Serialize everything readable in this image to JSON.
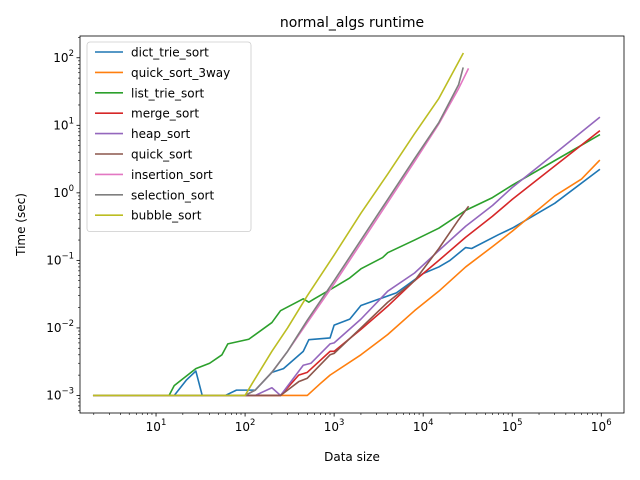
{
  "chart_data": {
    "type": "line",
    "title": "normal_algs runtime",
    "xlabel": "Data size",
    "ylabel": "Time (sec)",
    "xscale": "log",
    "yscale": "log",
    "xlim": [
      1.4,
      1800000
    ],
    "ylim": [
      0.00055,
      210
    ],
    "x_ticks": [
      {
        "value": 10,
        "base": "10",
        "exp": "1"
      },
      {
        "value": 100,
        "base": "10",
        "exp": "2"
      },
      {
        "value": 1000,
        "base": "10",
        "exp": "3"
      },
      {
        "value": 10000,
        "base": "10",
        "exp": "4"
      },
      {
        "value": 100000,
        "base": "10",
        "exp": "5"
      },
      {
        "value": 1000000,
        "base": "10",
        "exp": "6"
      }
    ],
    "y_ticks": [
      {
        "value": 0.001,
        "base": "10",
        "exp": "−3"
      },
      {
        "value": 0.01,
        "base": "10",
        "exp": "−2"
      },
      {
        "value": 0.1,
        "base": "10",
        "exp": "−1"
      },
      {
        "value": 1,
        "base": "10",
        "exp": "0"
      },
      {
        "value": 10,
        "base": "10",
        "exp": "1"
      },
      {
        "value": 100,
        "base": "10",
        "exp": "2"
      }
    ],
    "grid": false,
    "legend_position": "top-left",
    "series": [
      {
        "name": "dict_trie_sort",
        "color": "#1f77b4",
        "points": [
          [
            2,
            0.001
          ],
          [
            5,
            0.001
          ],
          [
            10,
            0.001
          ],
          [
            16,
            0.001
          ],
          [
            22,
            0.0017
          ],
          [
            28,
            0.0023
          ],
          [
            33,
            0.001
          ],
          [
            60,
            0.001
          ],
          [
            80,
            0.0012
          ],
          [
            130,
            0.0012
          ],
          [
            200,
            0.0022
          ],
          [
            270,
            0.0025
          ],
          [
            450,
            0.0045
          ],
          [
            520,
            0.0067
          ],
          [
            900,
            0.0071
          ],
          [
            1000,
            0.011
          ],
          [
            1500,
            0.0135
          ],
          [
            2000,
            0.0215
          ],
          [
            3000,
            0.026
          ],
          [
            5000,
            0.033
          ],
          [
            10000,
            0.064
          ],
          [
            15000,
            0.08
          ],
          [
            20000,
            0.1
          ],
          [
            30000,
            0.155
          ],
          [
            35000,
            0.15
          ],
          [
            70000,
            0.24
          ],
          [
            100000,
            0.3
          ],
          [
            300000,
            0.7
          ],
          [
            950000,
            2.2
          ]
        ]
      },
      {
        "name": "quick_sort_3way",
        "color": "#ff7f0e",
        "points": [
          [
            2,
            0.001
          ],
          [
            10,
            0.001
          ],
          [
            100,
            0.001
          ],
          [
            500,
            0.001
          ],
          [
            700,
            0.0015
          ],
          [
            900,
            0.002
          ],
          [
            2000,
            0.004
          ],
          [
            4000,
            0.008
          ],
          [
            8000,
            0.018
          ],
          [
            15000,
            0.035
          ],
          [
            30000,
            0.08
          ],
          [
            60000,
            0.16
          ],
          [
            100000,
            0.27
          ],
          [
            300000,
            0.9
          ],
          [
            600000,
            1.6
          ],
          [
            950000,
            3.0
          ]
        ]
      },
      {
        "name": "list_trie_sort",
        "color": "#2ca02c",
        "points": [
          [
            2,
            0.001
          ],
          [
            10,
            0.001
          ],
          [
            14,
            0.001
          ],
          [
            16,
            0.0014
          ],
          [
            28,
            0.0025
          ],
          [
            40,
            0.003
          ],
          [
            55,
            0.004
          ],
          [
            64,
            0.0058
          ],
          [
            110,
            0.0068
          ],
          [
            200,
            0.012
          ],
          [
            250,
            0.018
          ],
          [
            450,
            0.027
          ],
          [
            520,
            0.024
          ],
          [
            600,
            0.027
          ],
          [
            1000,
            0.04
          ],
          [
            1500,
            0.055
          ],
          [
            2000,
            0.075
          ],
          [
            3500,
            0.11
          ],
          [
            4000,
            0.13
          ],
          [
            8000,
            0.2
          ],
          [
            15000,
            0.3
          ],
          [
            30000,
            0.55
          ],
          [
            60000,
            0.85
          ],
          [
            100000,
            1.3
          ],
          [
            300000,
            3.0
          ],
          [
            950000,
            7.2
          ]
        ]
      },
      {
        "name": "merge_sort",
        "color": "#d62728",
        "points": [
          [
            2,
            0.001
          ],
          [
            100,
            0.001
          ],
          [
            250,
            0.001
          ],
          [
            300,
            0.0013
          ],
          [
            400,
            0.002
          ],
          [
            500,
            0.0022
          ],
          [
            900,
            0.0045
          ],
          [
            1000,
            0.0045
          ],
          [
            2000,
            0.0095
          ],
          [
            4000,
            0.021
          ],
          [
            8000,
            0.05
          ],
          [
            15000,
            0.1
          ],
          [
            30000,
            0.22
          ],
          [
            60000,
            0.45
          ],
          [
            100000,
            0.8
          ],
          [
            300000,
            2.5
          ],
          [
            950000,
            8.2
          ]
        ]
      },
      {
        "name": "heap_sort",
        "color": "#9467bd",
        "points": [
          [
            2,
            0.001
          ],
          [
            100,
            0.001
          ],
          [
            130,
            0.001
          ],
          [
            200,
            0.0013
          ],
          [
            250,
            0.001
          ],
          [
            450,
            0.0028
          ],
          [
            550,
            0.003
          ],
          [
            900,
            0.0058
          ],
          [
            1000,
            0.006
          ],
          [
            2000,
            0.0135
          ],
          [
            4000,
            0.035
          ],
          [
            8000,
            0.065
          ],
          [
            15000,
            0.14
          ],
          [
            30000,
            0.32
          ],
          [
            60000,
            0.65
          ],
          [
            100000,
            1.2
          ],
          [
            300000,
            3.8
          ],
          [
            950000,
            13.0
          ]
        ]
      },
      {
        "name": "quick_sort",
        "color": "#8c564b",
        "points": [
          [
            2,
            0.001
          ],
          [
            100,
            0.001
          ],
          [
            250,
            0.001
          ],
          [
            300,
            0.0012
          ],
          [
            400,
            0.0016
          ],
          [
            500,
            0.0018
          ],
          [
            900,
            0.004
          ],
          [
            1000,
            0.0042
          ],
          [
            2000,
            0.01
          ],
          [
            4000,
            0.024
          ],
          [
            8000,
            0.05
          ],
          [
            15000,
            0.15
          ],
          [
            25000,
            0.4
          ],
          [
            32000,
            0.62
          ]
        ]
      },
      {
        "name": "insertion_sort",
        "color": "#e377c2",
        "points": [
          [
            2,
            0.001
          ],
          [
            100,
            0.001
          ],
          [
            130,
            0.0012
          ],
          [
            200,
            0.0022
          ],
          [
            300,
            0.0045
          ],
          [
            500,
            0.012
          ],
          [
            1000,
            0.045
          ],
          [
            2000,
            0.18
          ],
          [
            4000,
            0.72
          ],
          [
            8000,
            2.9
          ],
          [
            15000,
            10.5
          ],
          [
            25000,
            35.0
          ],
          [
            32000,
            68.0
          ]
        ]
      },
      {
        "name": "selection_sort",
        "color": "#7f7f7f",
        "points": [
          [
            2,
            0.001
          ],
          [
            100,
            0.001
          ],
          [
            130,
            0.0012
          ],
          [
            200,
            0.0022
          ],
          [
            300,
            0.0045
          ],
          [
            500,
            0.013
          ],
          [
            1000,
            0.05
          ],
          [
            2000,
            0.2
          ],
          [
            4000,
            0.8
          ],
          [
            8000,
            3.2
          ],
          [
            15000,
            11.0
          ],
          [
            25000,
            40.0
          ],
          [
            28000,
            70.0
          ]
        ]
      },
      {
        "name": "bubble_sort",
        "color": "#bcbd22",
        "points": [
          [
            2,
            0.001
          ],
          [
            100,
            0.001
          ],
          [
            120,
            0.0015
          ],
          [
            200,
            0.0045
          ],
          [
            300,
            0.01
          ],
          [
            500,
            0.03
          ],
          [
            1000,
            0.12
          ],
          [
            2000,
            0.5
          ],
          [
            4000,
            1.9
          ],
          [
            8000,
            7.5
          ],
          [
            15000,
            25.0
          ],
          [
            28000,
            115.0
          ]
        ]
      }
    ]
  }
}
